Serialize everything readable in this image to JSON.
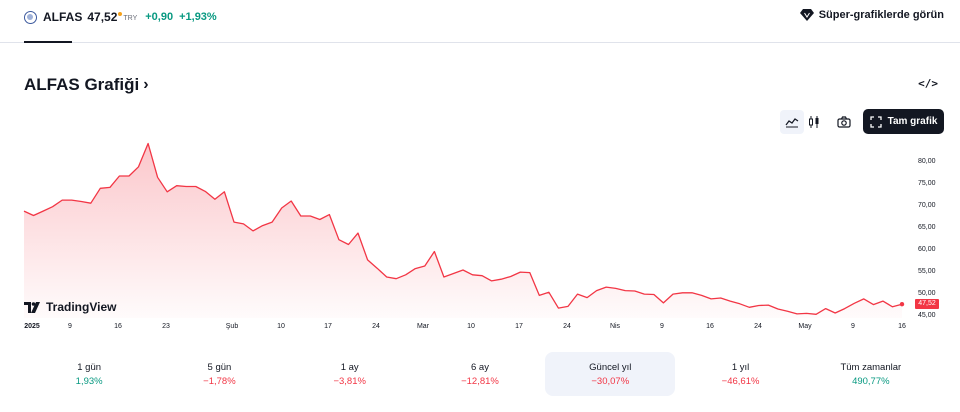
{
  "header": {
    "symbol": "ALFAS",
    "price": "47,52",
    "currency": "TRY",
    "change": "+0,90",
    "change_pct": "+1,93%",
    "super_link": "Süper-grafiklerde görün"
  },
  "title": {
    "text": "ALFAS Grafiği",
    "chevron": "›",
    "embed": "</>"
  },
  "toolbar": {
    "full_chart": "Tam grafik",
    "icons": [
      "area-chart-icon",
      "candles-icon",
      "camera-icon",
      "fullscreen-icon"
    ]
  },
  "brand": {
    "logo_text": "TradingView"
  },
  "chart_data": {
    "type": "area",
    "x_labels": [
      "2025",
      "9",
      "16",
      "23",
      "Şub",
      "10",
      "17",
      "24",
      "Mar",
      "10",
      "17",
      "24",
      "Nis",
      "9",
      "16",
      "24",
      "May",
      "9",
      "16"
    ],
    "y_ticks": [
      "80,00",
      "75,00",
      "70,00",
      "65,00",
      "60,00",
      "55,00",
      "50,00",
      "45,00"
    ],
    "ylim": [
      44,
      85
    ],
    "last_price_label": "47,52",
    "values": [
      68.8,
      67.8,
      68.8,
      69.8,
      71.3,
      71.3,
      71.0,
      70.6,
      74.0,
      74.2,
      76.8,
      76.8,
      78.9,
      84.2,
      76.5,
      73.2,
      74.6,
      74.4,
      74.4,
      73.3,
      71.5,
      73.2,
      66.3,
      65.9,
      64.3,
      65.5,
      66.3,
      69.5,
      71.1,
      67.7,
      67.7,
      66.9,
      68.0,
      62.3,
      61.2,
      63.8,
      57.7,
      55.8,
      53.8,
      53.4,
      54.3,
      55.7,
      56.3,
      59.6,
      53.8,
      54.6,
      55.4,
      54.3,
      54.1,
      52.9,
      53.3,
      53.9,
      54.9,
      54.8,
      49.6,
      50.3,
      46.7,
      47.1,
      49.9,
      49.1,
      50.7,
      51.5,
      51.2,
      50.7,
      50.6,
      49.9,
      49.8,
      47.9,
      49.9,
      50.2,
      50.2,
      49.6,
      48.8,
      49.0,
      48.3,
      47.7,
      46.9,
      47.3,
      47.4,
      46.5,
      46.0,
      45.4,
      45.5,
      45.3,
      46.6,
      45.6,
      46.6,
      47.8,
      48.8,
      47.5,
      48.3,
      47.0,
      47.6
    ],
    "line_color": "#f23645",
    "fill_color": "#fde0e2"
  },
  "periods": [
    {
      "label": "1 gün",
      "value": "1,93%",
      "sign": "pos"
    },
    {
      "label": "5 gün",
      "value": "−1,78%",
      "sign": "neg"
    },
    {
      "label": "1 ay",
      "value": "−3,81%",
      "sign": "neg"
    },
    {
      "label": "6 ay",
      "value": "−12,81%",
      "sign": "neg"
    },
    {
      "label": "Güncel yıl",
      "value": "−30,07%",
      "sign": "neg",
      "active": true
    },
    {
      "label": "1 yıl",
      "value": "−46,61%",
      "sign": "neg"
    },
    {
      "label": "Tüm zamanlar",
      "value": "490,77%",
      "sign": "pos"
    }
  ]
}
